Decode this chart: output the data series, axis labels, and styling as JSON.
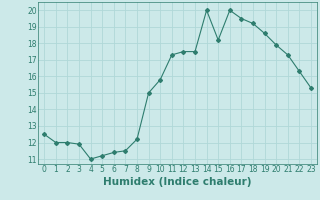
{
  "x": [
    0,
    1,
    2,
    3,
    4,
    5,
    6,
    7,
    8,
    9,
    10,
    11,
    12,
    13,
    14,
    15,
    16,
    17,
    18,
    19,
    20,
    21,
    22,
    23
  ],
  "y": [
    12.5,
    12.0,
    12.0,
    11.9,
    11.0,
    11.2,
    11.4,
    11.5,
    12.2,
    15.0,
    15.8,
    17.3,
    17.5,
    17.5,
    20.0,
    18.2,
    20.0,
    19.5,
    19.2,
    18.6,
    17.9,
    17.3,
    16.3,
    15.3
  ],
  "line_color": "#2e7d6e",
  "marker": "D",
  "marker_size": 2.0,
  "bg_color": "#cce9e9",
  "grid_color": "#b0d8d8",
  "xlabel": "Humidex (Indice chaleur)",
  "ylim": [
    10.7,
    20.5
  ],
  "yticks": [
    11,
    12,
    13,
    14,
    15,
    16,
    17,
    18,
    19,
    20
  ],
  "xticks": [
    0,
    1,
    2,
    3,
    4,
    5,
    6,
    7,
    8,
    9,
    10,
    11,
    12,
    13,
    14,
    15,
    16,
    17,
    18,
    19,
    20,
    21,
    22,
    23
  ],
  "tick_label_fontsize": 5.5,
  "xlabel_fontsize": 7.5
}
